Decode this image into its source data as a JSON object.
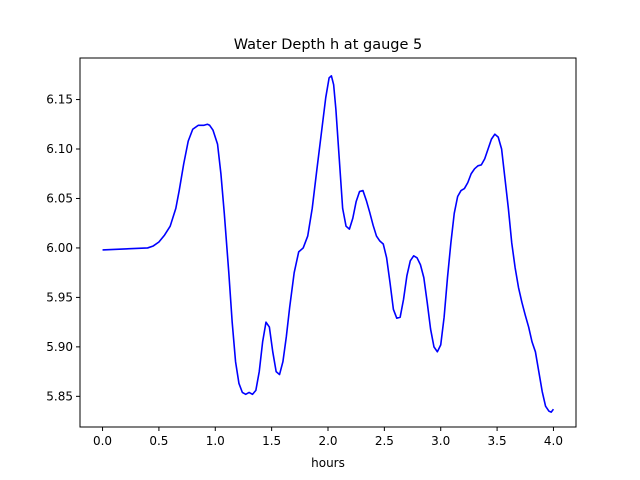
{
  "chart_data": {
    "type": "line",
    "title": "Water Depth h at gauge 5",
    "xlabel": "hours",
    "ylabel": "",
    "xlim": [
      -0.2,
      4.2
    ],
    "ylim": [
      5.819,
      6.192
    ],
    "x_ticks": [
      0.0,
      0.5,
      1.0,
      1.5,
      2.0,
      2.5,
      3.0,
      3.5,
      4.0
    ],
    "x_tick_labels": [
      "0.0",
      "0.5",
      "1.0",
      "1.5",
      "2.0",
      "2.5",
      "3.0",
      "3.5",
      "4.0"
    ],
    "y_ticks": [
      5.85,
      5.9,
      5.95,
      6.0,
      6.05,
      6.1,
      6.15
    ],
    "y_tick_labels": [
      "5.85",
      "5.90",
      "5.95",
      "6.00",
      "6.05",
      "6.10",
      "6.15"
    ],
    "grid": false,
    "legend": "none",
    "series": [
      {
        "color": "#0000ff",
        "x": [
          0.0,
          0.2,
          0.4,
          0.45,
          0.5,
          0.55,
          0.6,
          0.65,
          0.68,
          0.72,
          0.76,
          0.8,
          0.85,
          0.9,
          0.93,
          0.95,
          0.98,
          1.02,
          1.05,
          1.08,
          1.12,
          1.15,
          1.18,
          1.21,
          1.24,
          1.27,
          1.3,
          1.33,
          1.36,
          1.39,
          1.42,
          1.45,
          1.48,
          1.51,
          1.54,
          1.57,
          1.6,
          1.63,
          1.66,
          1.7,
          1.74,
          1.78,
          1.82,
          1.86,
          1.9,
          1.94,
          1.98,
          2.01,
          2.03,
          2.05,
          2.07,
          2.1,
          2.13,
          2.16,
          2.19,
          2.22,
          2.25,
          2.28,
          2.31,
          2.34,
          2.37,
          2.4,
          2.43,
          2.46,
          2.49,
          2.52,
          2.55,
          2.58,
          2.61,
          2.64,
          2.67,
          2.7,
          2.73,
          2.76,
          2.79,
          2.82,
          2.85,
          2.88,
          2.91,
          2.94,
          2.97,
          3.0,
          3.03,
          3.06,
          3.09,
          3.12,
          3.15,
          3.18,
          3.21,
          3.24,
          3.27,
          3.3,
          3.33,
          3.36,
          3.39,
          3.42,
          3.45,
          3.48,
          3.51,
          3.54,
          3.57,
          3.6,
          3.63,
          3.66,
          3.69,
          3.72,
          3.75,
          3.78,
          3.81,
          3.84,
          3.87,
          3.9,
          3.93,
          3.96,
          3.98,
          4.0
        ],
        "y": [
          5.998,
          5.999,
          6.0,
          6.002,
          6.006,
          6.013,
          6.022,
          6.04,
          6.058,
          6.085,
          6.108,
          6.12,
          6.124,
          6.124,
          6.125,
          6.124,
          6.119,
          6.105,
          6.075,
          6.035,
          5.975,
          5.925,
          5.885,
          5.863,
          5.854,
          5.852,
          5.854,
          5.852,
          5.856,
          5.875,
          5.905,
          5.925,
          5.92,
          5.895,
          5.875,
          5.872,
          5.885,
          5.91,
          5.94,
          5.975,
          5.996,
          6.0,
          6.012,
          6.04,
          6.078,
          6.115,
          6.152,
          6.172,
          6.174,
          6.165,
          6.14,
          6.09,
          6.04,
          6.022,
          6.019,
          6.03,
          6.047,
          6.057,
          6.058,
          6.048,
          6.036,
          6.023,
          6.012,
          6.007,
          6.004,
          5.99,
          5.965,
          5.938,
          5.929,
          5.93,
          5.948,
          5.972,
          5.987,
          5.992,
          5.99,
          5.983,
          5.97,
          5.945,
          5.918,
          5.9,
          5.895,
          5.902,
          5.93,
          5.97,
          6.005,
          6.035,
          6.052,
          6.058,
          6.06,
          6.066,
          6.075,
          6.08,
          6.083,
          6.084,
          6.09,
          6.1,
          6.11,
          6.115,
          6.112,
          6.1,
          6.07,
          6.04,
          6.005,
          5.98,
          5.96,
          5.945,
          5.932,
          5.92,
          5.905,
          5.895,
          5.875,
          5.855,
          5.84,
          5.835,
          5.834,
          5.837
        ]
      }
    ]
  }
}
